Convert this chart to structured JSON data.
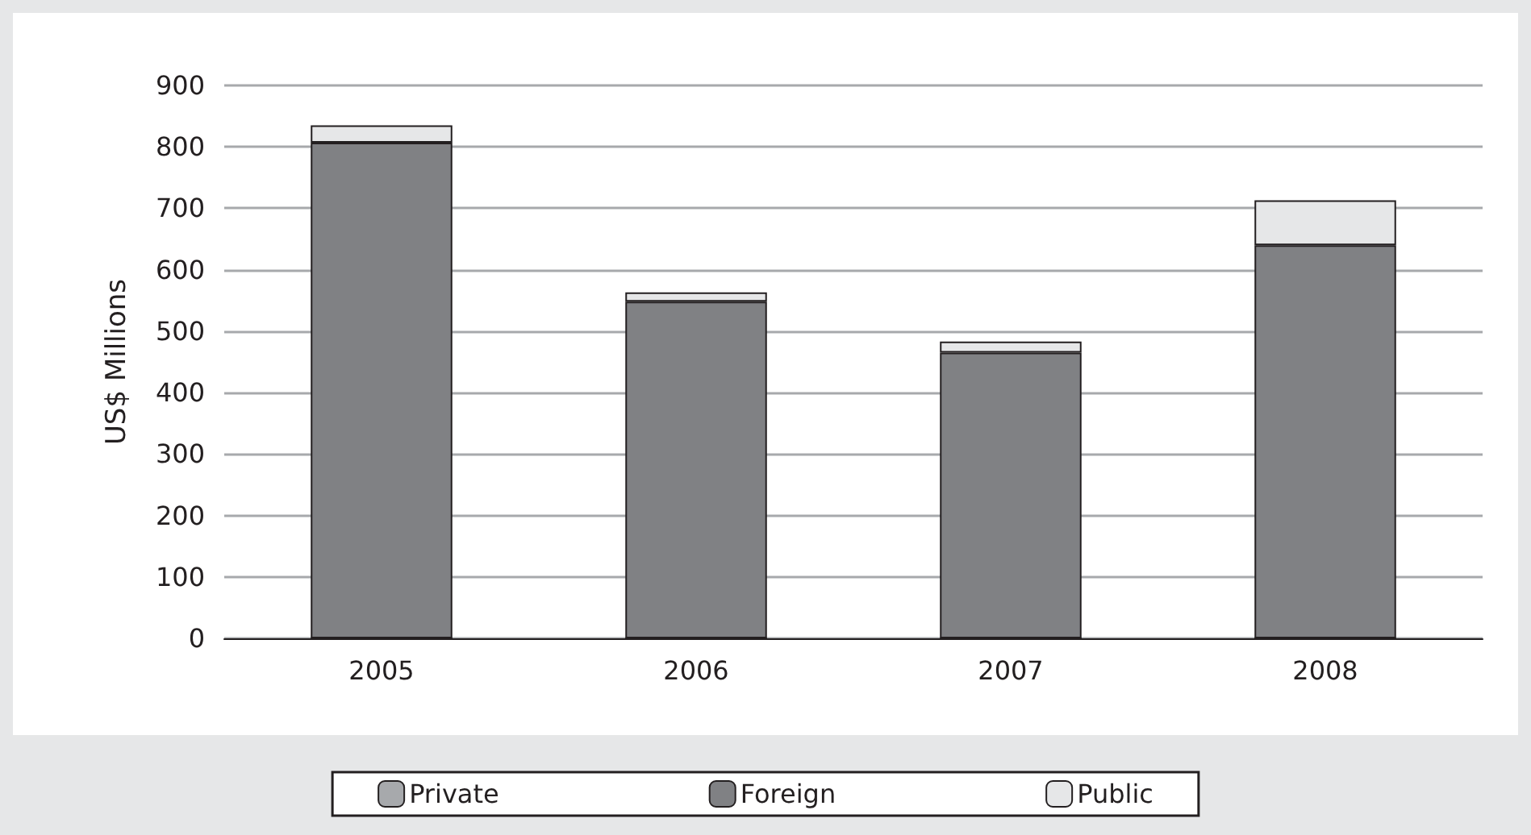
{
  "chart_data": {
    "type": "bar",
    "stacked": true,
    "ylabel": "US$ Millions",
    "categories": [
      "2005",
      "2006",
      "2007",
      "2008"
    ],
    "series": [
      {
        "name": "Private",
        "color": "#a7a9ac",
        "values": [
          0,
          0,
          0,
          0
        ]
      },
      {
        "name": "Foreign",
        "color": "#808184",
        "values": [
          807,
          548,
          465,
          640
        ]
      },
      {
        "name": "Public",
        "color": "#e6e7e8",
        "values": [
          28,
          15,
          18,
          73
        ]
      }
    ],
    "ylim": [
      0,
      900
    ],
    "yticks": [
      0,
      100,
      200,
      300,
      400,
      500,
      600,
      700,
      800,
      900
    ],
    "grid": "y",
    "legend": "bottom"
  }
}
